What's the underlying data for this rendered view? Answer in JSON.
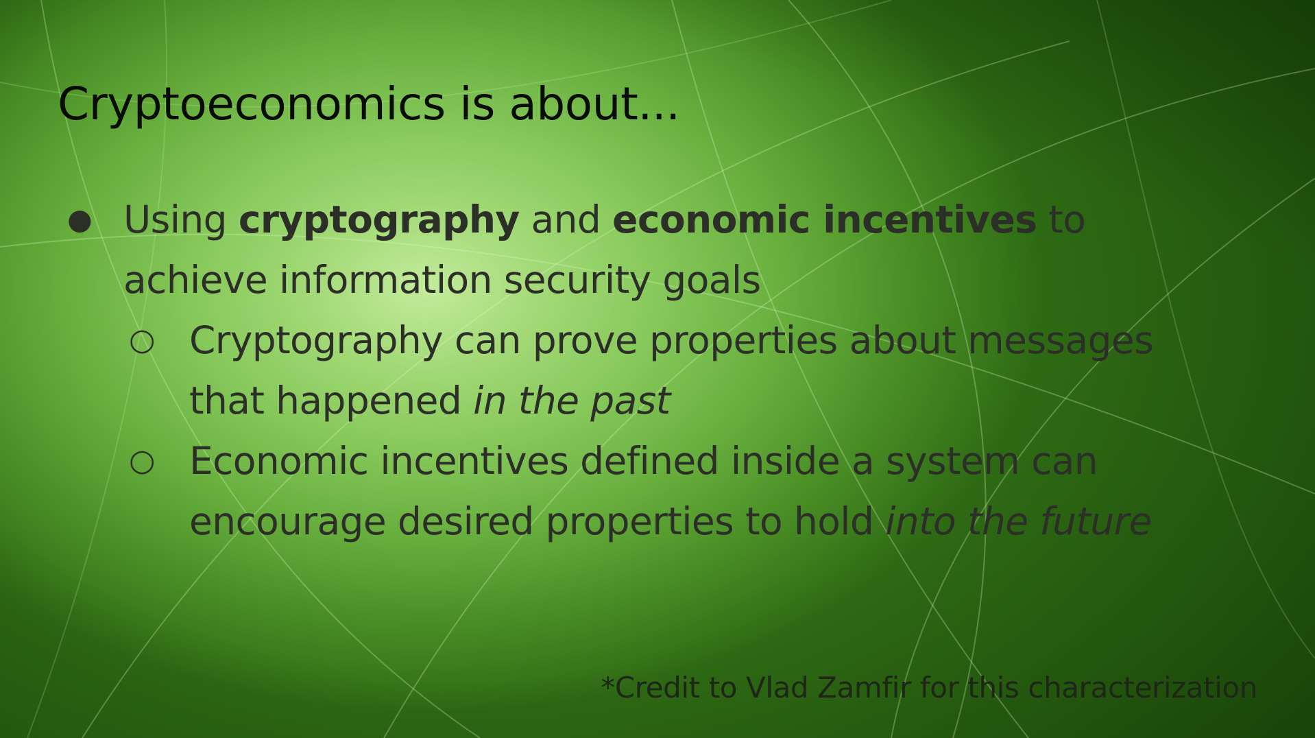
{
  "slide": {
    "title": "Cryptoeconomics is about...",
    "bullets": [
      {
        "marker": "●",
        "parts": [
          "Using ",
          "cryptography",
          " and ",
          "economic incentives",
          " to"
        ],
        "continuation": "achieve information security goals",
        "sub_bullets": [
          {
            "marker": "○",
            "line1": "Cryptography can prove properties about messages",
            "line2_text": "that happened ",
            "line2_emphasis": "in the past"
          },
          {
            "marker": "○",
            "line1": "Economic incentives defined inside a system can",
            "line2_text": "encourage desired properties to hold ",
            "line2_emphasis": "into the future"
          }
        ]
      }
    ],
    "credit": "*Credit to Vlad Zamfir for this characterization"
  },
  "colors": {
    "background_center": "#c4eb9c",
    "background_edge": "#2e6a14",
    "title_text": "#0a0d07",
    "body_text": "#2c2f28"
  }
}
